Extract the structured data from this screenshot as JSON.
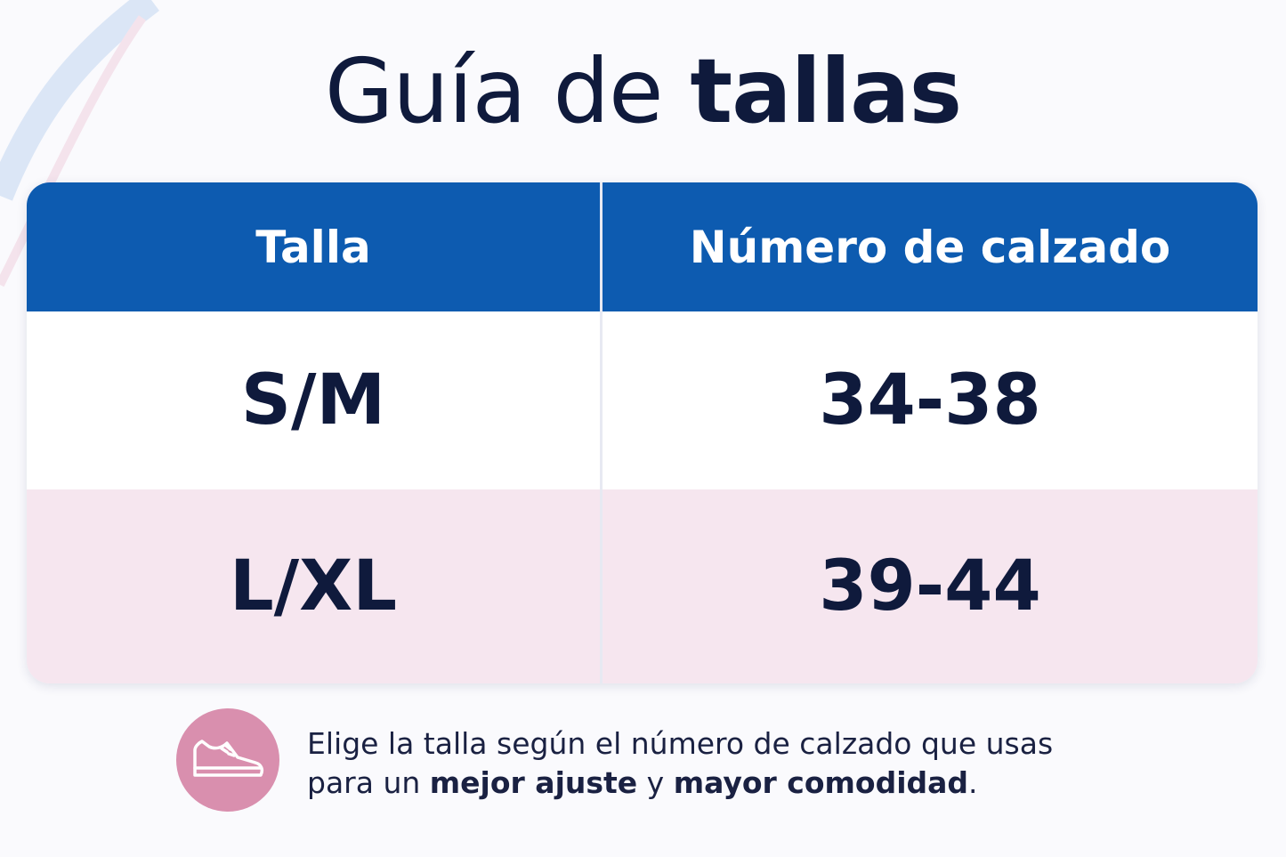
{
  "title": {
    "regular": "Guía de",
    "bold": "tallas"
  },
  "table": {
    "headers": [
      "Talla",
      "Número de calzado"
    ],
    "rows": [
      [
        "S/M",
        "34-38"
      ],
      [
        "L/XL",
        "39-44"
      ]
    ]
  },
  "note": {
    "line1": "Elige la talla según el número de calzado que usas",
    "line2": [
      "para un",
      "mejor ajuste",
      "y",
      "mayor comodidad",
      "."
    ]
  }
}
